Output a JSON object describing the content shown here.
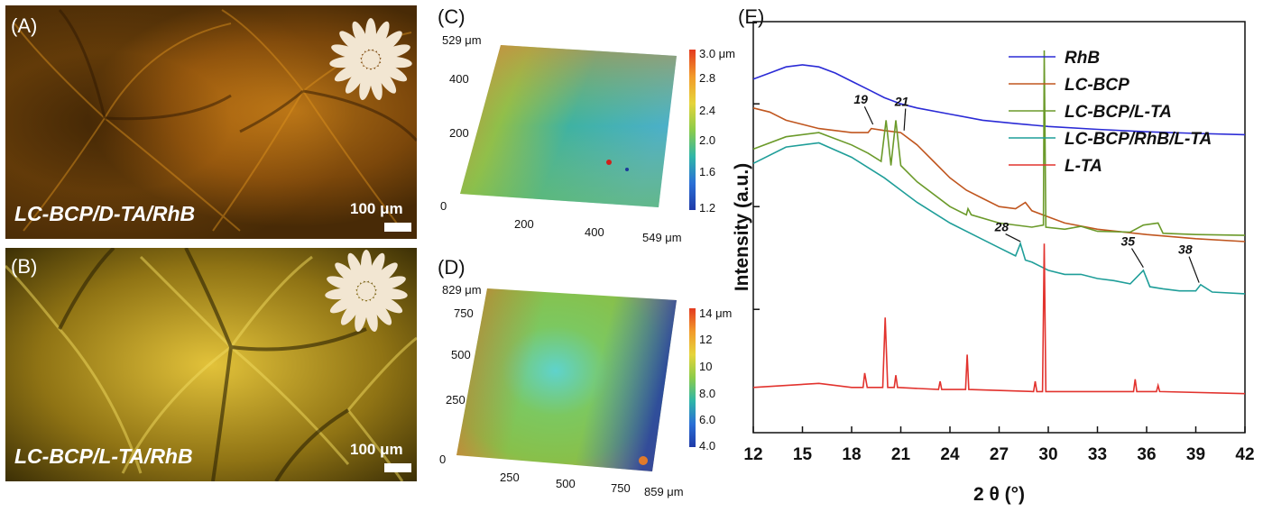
{
  "panels": {
    "A": {
      "label": "(A)",
      "caption": "LC-BCP/D-TA/RhB",
      "scale_label": "100 μm",
      "tone": "#b8700e"
    },
    "B": {
      "label": "(B)",
      "caption": "LC-BCP/L-TA/RhB",
      "scale_label": "100 μm",
      "tone": "#c9a322"
    },
    "C": {
      "label": "(C)",
      "y_max_label": "529 μm",
      "y_ticks": [
        "400",
        "200",
        "0"
      ],
      "x_ticks": [
        "200",
        "400"
      ],
      "x_max_label": "549 μm",
      "colorbar_ticks": [
        "3.0 μm",
        "2.8",
        "2.4",
        "2.0",
        "1.6",
        "1.2"
      ]
    },
    "D": {
      "label": "(D)",
      "y_max_label": "829 μm",
      "y_ticks": [
        "750",
        "500",
        "250",
        "0"
      ],
      "x_ticks": [
        "250",
        "500",
        "750"
      ],
      "x_max_label": "859 μm",
      "colorbar_ticks": [
        "14 μm",
        "12",
        "10",
        "8.0",
        "6.0",
        "4.0"
      ]
    },
    "E": {
      "label": "(E)"
    }
  },
  "chart_data": {
    "type": "line",
    "title": "",
    "xlabel": "2 θ (°)",
    "ylabel": "Intensity (a.u.)",
    "xlim": [
      12,
      42
    ],
    "x_ticks": [
      12,
      15,
      18,
      21,
      24,
      27,
      30,
      33,
      36,
      39,
      42
    ],
    "legend_position": "top-right",
    "series": [
      {
        "name": "RhB",
        "color": "#2b2bd6",
        "x": [
          12,
          13,
          14,
          15,
          16,
          17,
          18,
          19,
          20,
          21,
          22,
          24,
          26,
          28,
          30,
          33,
          36,
          39,
          42
        ],
        "y": [
          8.6,
          8.75,
          8.9,
          8.95,
          8.9,
          8.75,
          8.55,
          8.35,
          8.15,
          8.0,
          7.9,
          7.75,
          7.6,
          7.52,
          7.45,
          7.38,
          7.32,
          7.28,
          7.25
        ]
      },
      {
        "name": "LC-BCP",
        "color": "#c0561f",
        "x": [
          12,
          13,
          14,
          15,
          16,
          17,
          18,
          19,
          19.2,
          20,
          21,
          22,
          23,
          24,
          25,
          26,
          27,
          28,
          28.6,
          29,
          30,
          31,
          33,
          36,
          39,
          42
        ],
        "y": [
          7.9,
          7.8,
          7.6,
          7.5,
          7.4,
          7.35,
          7.3,
          7.3,
          7.4,
          7.35,
          7.3,
          7.0,
          6.6,
          6.2,
          5.9,
          5.7,
          5.5,
          5.45,
          5.6,
          5.4,
          5.25,
          5.1,
          4.95,
          4.82,
          4.72,
          4.65
        ]
      },
      {
        "name": "LC-BCP/L-TA",
        "color": "#6b9a2a",
        "x": [
          12,
          14,
          16,
          18,
          19,
          19.8,
          20.1,
          20.4,
          20.7,
          21,
          22,
          24,
          25,
          25.1,
          25.3,
          27,
          29,
          29.7,
          29.75,
          29.85,
          31,
          32,
          33,
          35,
          35.8,
          36.7,
          37,
          39,
          42
        ],
        "y": [
          6.9,
          7.2,
          7.3,
          7.0,
          6.8,
          6.6,
          7.6,
          6.5,
          7.6,
          6.5,
          6.1,
          5.5,
          5.3,
          5.45,
          5.3,
          5.1,
          5.0,
          5.05,
          9.3,
          5.0,
          4.95,
          5.02,
          4.9,
          4.88,
          5.05,
          5.1,
          4.85,
          4.82,
          4.8
        ]
      },
      {
        "name": "LC-BCP/RhB/L-TA",
        "color": "#1f9e99",
        "x": [
          12,
          14,
          16,
          18,
          20,
          21,
          22,
          24,
          26,
          27,
          28,
          28.3,
          28.6,
          29,
          29.5,
          30,
          31,
          32,
          33,
          34,
          35,
          35.8,
          36.2,
          37,
          38,
          39,
          39.3,
          40,
          42
        ],
        "y": [
          6.55,
          6.95,
          7.05,
          6.7,
          6.2,
          5.9,
          5.6,
          5.1,
          4.7,
          4.5,
          4.3,
          4.6,
          4.2,
          4.15,
          4.05,
          3.95,
          3.85,
          3.85,
          3.75,
          3.7,
          3.62,
          3.95,
          3.55,
          3.5,
          3.45,
          3.45,
          3.6,
          3.42,
          3.38
        ]
      },
      {
        "name": "L-TA",
        "color": "#e2332e",
        "x": [
          12,
          16,
          18,
          18.7,
          18.8,
          18.95,
          19.9,
          20.05,
          20.2,
          20.6,
          20.7,
          20.8,
          23.3,
          23.4,
          23.5,
          24.95,
          25.05,
          25.15,
          29.1,
          29.2,
          29.3,
          29.65,
          29.75,
          29.85,
          32,
          35.2,
          35.3,
          35.4,
          36.6,
          36.7,
          36.8,
          42
        ],
        "y": [
          1.1,
          1.2,
          1.1,
          1.1,
          1.45,
          1.1,
          1.1,
          2.8,
          1.1,
          1.1,
          1.4,
          1.1,
          1.05,
          1.25,
          1.05,
          1.05,
          1.9,
          1.05,
          1.0,
          1.25,
          1.0,
          1.0,
          4.6,
          1.0,
          1.0,
          1.0,
          1.3,
          1.0,
          1.0,
          1.15,
          1.0,
          0.95
        ]
      }
    ],
    "annotations": [
      "19",
      "21",
      "28",
      "35",
      "38"
    ]
  }
}
